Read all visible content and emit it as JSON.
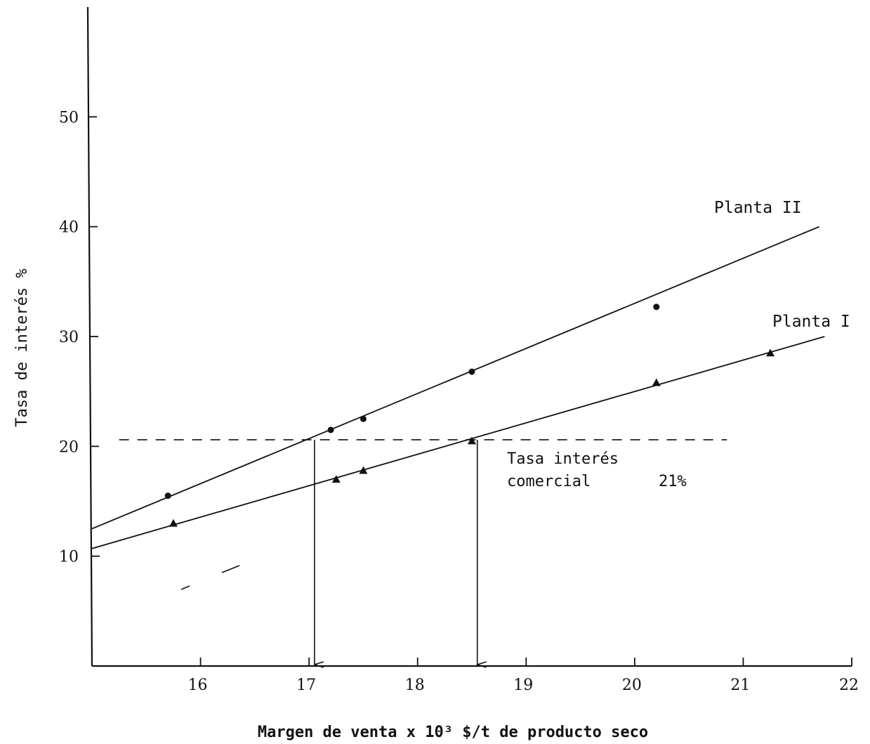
{
  "chart_data": {
    "type": "scatter",
    "title": "",
    "xlabel": "Margen de venta  x 10³ $/t de producto seco",
    "ylabel": "Tasa de interés %",
    "xlim": [
      15,
      22
    ],
    "ylim": [
      0,
      60
    ],
    "x_ticks": [
      16,
      17,
      18,
      19,
      20,
      21,
      22
    ],
    "y_ticks": [
      10,
      20,
      30,
      40,
      50
    ],
    "grid": false,
    "series": [
      {
        "name": "Planta II",
        "marker": "circle",
        "points": [
          [
            15.7,
            15.5
          ],
          [
            17.2,
            21.5
          ],
          [
            17.5,
            22.5
          ],
          [
            18.5,
            26.8
          ],
          [
            20.2,
            32.7
          ]
        ],
        "fit_line": [
          [
            15,
            12.5
          ],
          [
            21.7,
            40
          ]
        ]
      },
      {
        "name": "Planta I",
        "marker": "triangle",
        "points": [
          [
            15.75,
            13
          ],
          [
            17.25,
            17
          ],
          [
            17.5,
            17.8
          ],
          [
            18.5,
            20.5
          ],
          [
            20.2,
            25.8
          ],
          [
            21.25,
            28.5
          ]
        ],
        "fit_line": [
          [
            15,
            10.7
          ],
          [
            21.75,
            30
          ]
        ]
      }
    ],
    "reference_line": {
      "label_line1": "Tasa interés",
      "label_line2": "comercial",
      "label_value": "21%",
      "y": 20.6,
      "x_range": [
        15.25,
        20.85
      ]
    },
    "arrows": [
      {
        "x": 17.05,
        "y_from": 20.6,
        "y_to": 0
      },
      {
        "x": 18.55,
        "y_from": 20.6,
        "y_to": 0
      }
    ],
    "colors": {
      "ink": "#111111",
      "background": "#ffffff"
    }
  }
}
